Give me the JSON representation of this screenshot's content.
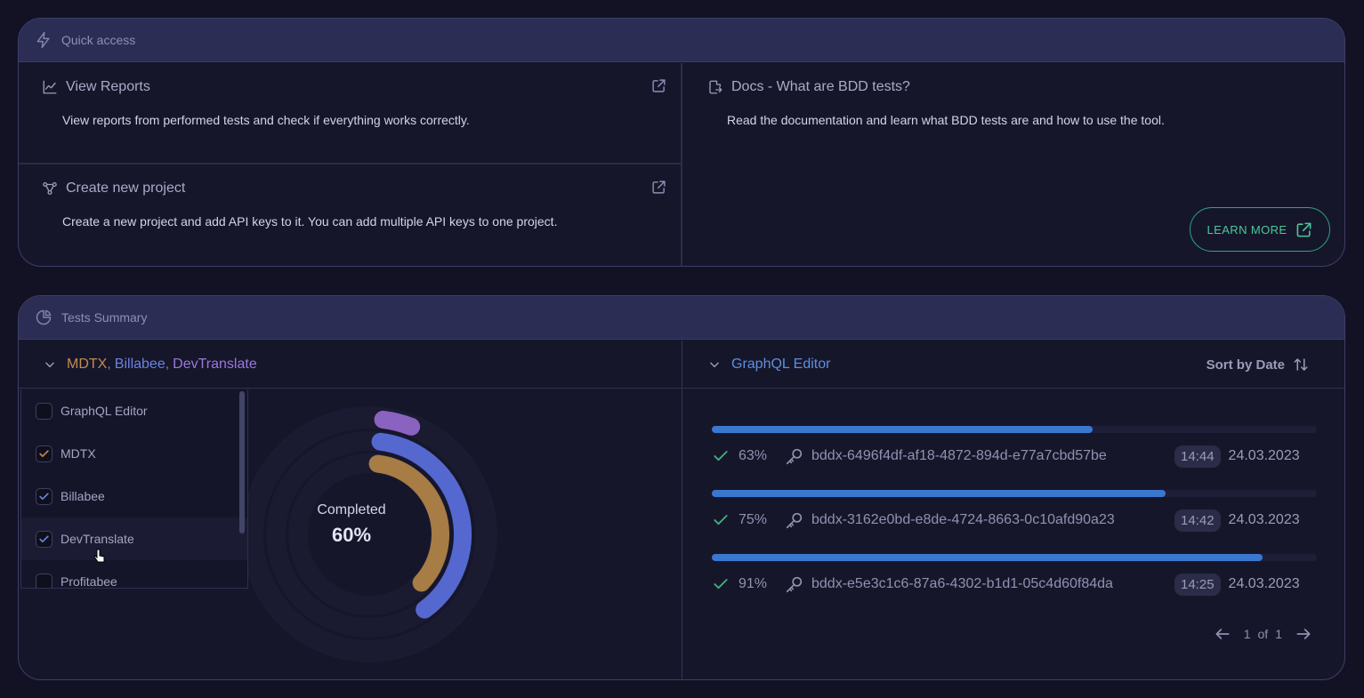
{
  "quick_access": {
    "header": "Quick access",
    "items": [
      {
        "title": "View Reports",
        "description": "View reports from performed tests and check if everything works correctly."
      },
      {
        "title": "Create new project",
        "description": "Create a new project and add API keys to it. You can add multiple API keys to one project."
      }
    ],
    "docs": {
      "title": "Docs - What are BDD tests?",
      "description": "Read the documentation and learn what BDD tests are and how to use the tool.",
      "button_label": "LEARN MORE"
    }
  },
  "tests_summary": {
    "header": "Tests Summary",
    "selected_projects": [
      {
        "label": "MDTX",
        "color": "#c28b4f"
      },
      {
        "label": "Billabee",
        "color": "#6a83e0"
      },
      {
        "label": "DevTranslate",
        "color": "#9a79db"
      }
    ],
    "dropdown_items": [
      {
        "label": "GraphQL Editor",
        "checked": false
      },
      {
        "label": "MDTX",
        "checked": true,
        "check_color": "#c28b4f"
      },
      {
        "label": "Billabee",
        "checked": true,
        "check_color": "#6a83e0"
      },
      {
        "label": "DevTranslate",
        "checked": true,
        "check_color": "#6a83e0"
      },
      {
        "label": "Profitabee",
        "checked": false
      }
    ],
    "donut": {
      "label": "Completed",
      "value_label": "60%",
      "rings": [
        {
          "name": "DevTranslate",
          "color": "#8a62c0",
          "fraction": 0.04
        },
        {
          "name": "Billabee",
          "color": "#5568d0",
          "fraction": 0.38
        },
        {
          "name": "MDTX",
          "color": "#a77c45",
          "fraction": 0.35
        }
      ]
    },
    "selected_project": "GraphQL Editor",
    "sort_label": "Sort by Date",
    "reports": [
      {
        "percent": "63%",
        "fraction": 0.63,
        "id": "bddx-6496f4df-af18-4872-894d-e77a7cbd57be",
        "time": "14:44",
        "date": "24.03.2023"
      },
      {
        "percent": "75%",
        "fraction": 0.75,
        "id": "bddx-3162e0bd-e8de-4724-8663-0c10afd90a23",
        "time": "14:42",
        "date": "24.03.2023"
      },
      {
        "percent": "91%",
        "fraction": 0.91,
        "id": "bddx-e5e3c1c6-87a6-4302-b1d1-05c4d60f84da",
        "time": "14:25",
        "date": "24.03.2023"
      }
    ],
    "pagination": {
      "current": "1",
      "of": "of",
      "total": "1"
    }
  }
}
